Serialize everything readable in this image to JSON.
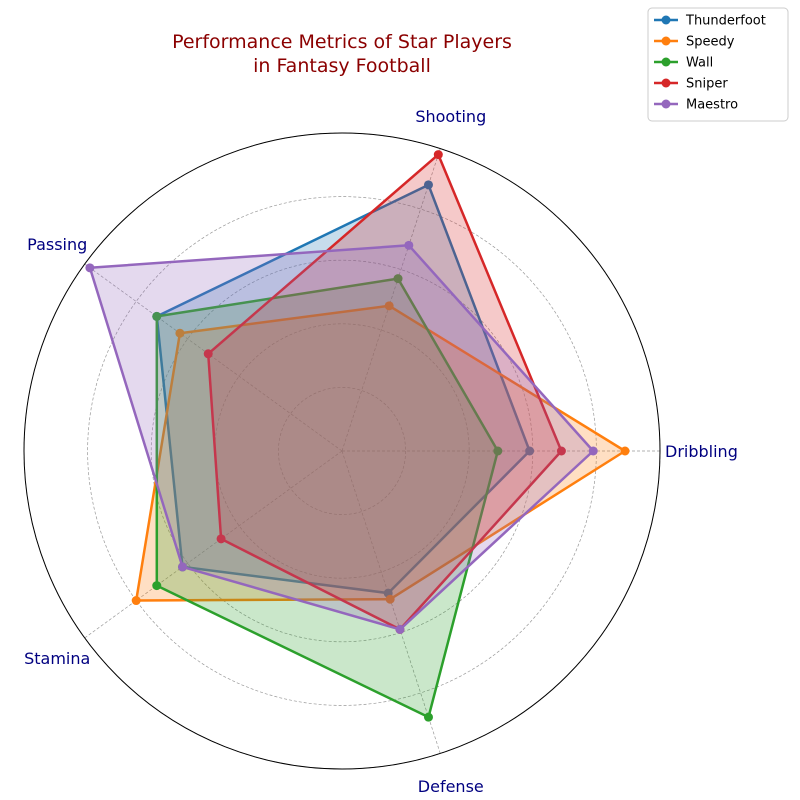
{
  "chart_data": {
    "type": "radar",
    "title": [
      "Performance Metrics of Star Players",
      "in Fantasy Football"
    ],
    "axes": [
      "Dribbling",
      "Shooting",
      "Passing",
      "Stamina",
      "Defense"
    ],
    "rlim": [
      0,
      100
    ],
    "grid": true,
    "legend_position": "top-right",
    "series": [
      {
        "name": "Thunderfoot",
        "color": "#1f77b4",
        "values": [
          59,
          88,
          72,
          62,
          47
        ]
      },
      {
        "name": "Speedy",
        "color": "#ff7f0e",
        "values": [
          89,
          48,
          63,
          80,
          49
        ]
      },
      {
        "name": "Wall",
        "color": "#2ca02c",
        "values": [
          49,
          57,
          72,
          72,
          88
        ]
      },
      {
        "name": "Sniper",
        "color": "#d62728",
        "values": [
          69,
          98,
          52,
          47,
          59
        ]
      },
      {
        "name": "Maestro",
        "color": "#9467bd",
        "values": [
          79,
          68,
          98,
          62,
          59
        ]
      }
    ]
  }
}
